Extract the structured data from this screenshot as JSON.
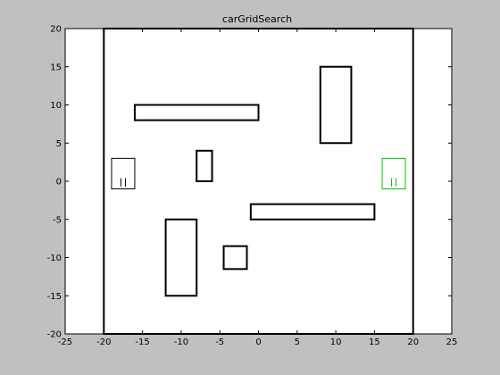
{
  "window": {
    "background": "#c0c0c0"
  },
  "chart_data": {
    "type": "scatter",
    "title": "carGridSearch",
    "xlabel": "",
    "ylabel": "",
    "xlim": [
      -25,
      25
    ],
    "ylim": [
      -20,
      20
    ],
    "xticks": [
      -25,
      -20,
      -15,
      -10,
      -5,
      0,
      5,
      10,
      15,
      20,
      25
    ],
    "yticks": [
      -20,
      -15,
      -10,
      -5,
      0,
      5,
      10,
      15,
      20
    ],
    "grid": false,
    "colors": {
      "axes_background": "#ffffff",
      "obstacle": "#000000",
      "start_car": "#000000",
      "goal_car": "#00c000"
    },
    "boundary": {
      "x": [
        -20,
        20
      ],
      "y": [
        -20,
        20
      ]
    },
    "obstacles": [
      {
        "name": "obstacle-top-horizontal",
        "x": [
          -16,
          0
        ],
        "y": [
          8,
          10
        ]
      },
      {
        "name": "obstacle-top-right-vertical",
        "x": [
          8,
          12
        ],
        "y": [
          5,
          15
        ]
      },
      {
        "name": "obstacle-small-center",
        "x": [
          -8,
          -6
        ],
        "y": [
          0,
          4
        ]
      },
      {
        "name": "obstacle-mid-horizontal",
        "x": [
          -1,
          15
        ],
        "y": [
          -5,
          -3
        ]
      },
      {
        "name": "obstacle-bottom-left-vertical",
        "x": [
          -12,
          -8
        ],
        "y": [
          -15,
          -5
        ]
      },
      {
        "name": "obstacle-small-square",
        "x": [
          -4.5,
          -1.5
        ],
        "y": [
          -11.5,
          -8.5
        ]
      }
    ],
    "cars": [
      {
        "name": "start-car",
        "role": "start",
        "x": [
          -19,
          -16
        ],
        "y": [
          -1,
          3
        ]
      },
      {
        "name": "goal-car",
        "role": "goal",
        "x": [
          16,
          19
        ],
        "y": [
          -1,
          3
        ]
      }
    ]
  }
}
